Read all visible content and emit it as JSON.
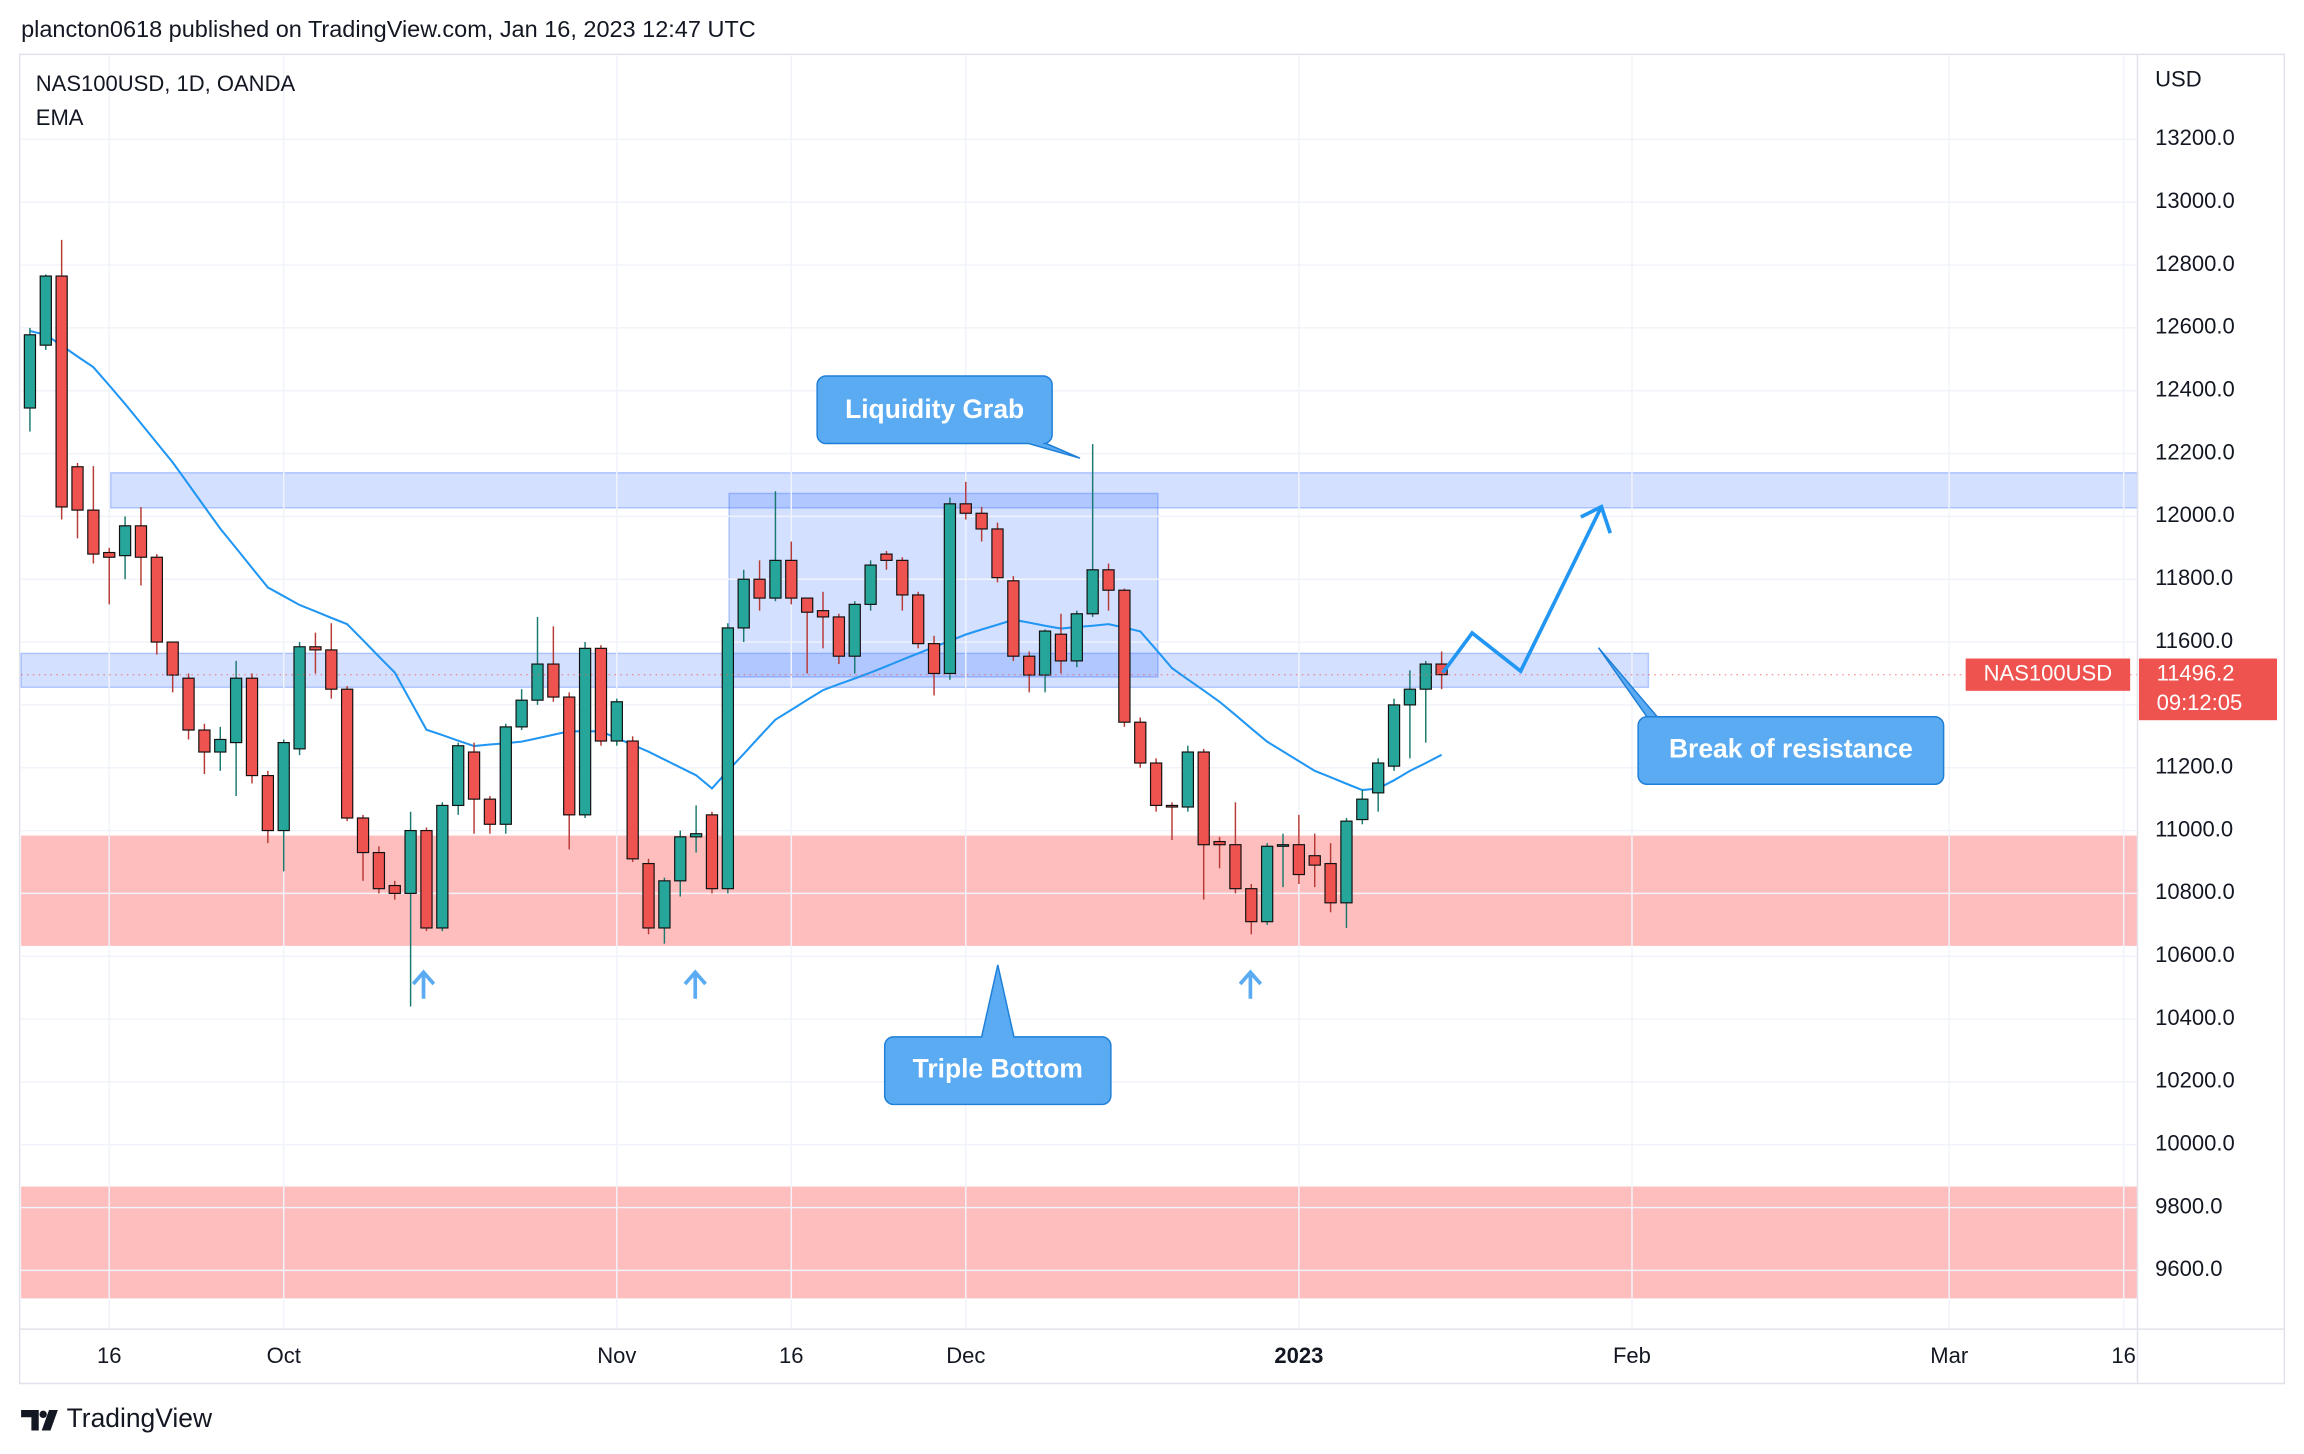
{
  "header": "plancton0618 published on TradingView.com, Jan 16, 2023 12:47 UTC",
  "footer": "TradingView",
  "chart_data": {
    "type": "candlestick",
    "title": "NAS100USD, 1D, OANDA",
    "y_axis_label": "USD",
    "x": [
      "2022-09-09",
      "2022-09-12",
      "2022-09-13",
      "2022-09-14",
      "2022-09-15",
      "2022-09-16",
      "2022-09-19",
      "2022-09-20",
      "2022-09-21",
      "2022-09-22",
      "2022-09-23",
      "2022-09-26",
      "2022-09-27",
      "2022-09-28",
      "2022-09-29",
      "2022-09-30",
      "2022-10-03",
      "2022-10-04",
      "2022-10-05",
      "2022-10-06",
      "2022-10-07",
      "2022-10-10",
      "2022-10-11",
      "2022-10-12",
      "2022-10-13",
      "2022-10-14",
      "2022-10-17",
      "2022-10-18",
      "2022-10-19",
      "2022-10-20",
      "2022-10-21",
      "2022-10-24",
      "2022-10-25",
      "2022-10-26",
      "2022-10-27",
      "2022-10-28",
      "2022-10-31",
      "2022-11-01",
      "2022-11-02",
      "2022-11-03",
      "2022-11-04",
      "2022-11-07",
      "2022-11-08",
      "2022-11-09",
      "2022-11-10",
      "2022-11-11",
      "2022-11-14",
      "2022-11-15",
      "2022-11-16",
      "2022-11-17",
      "2022-11-18",
      "2022-11-21",
      "2022-11-22",
      "2022-11-23",
      "2022-11-24",
      "2022-11-25",
      "2022-11-28",
      "2022-11-29",
      "2022-11-30",
      "2022-12-01",
      "2022-12-02",
      "2022-12-05",
      "2022-12-06",
      "2022-12-07",
      "2022-12-08",
      "2022-12-09",
      "2022-12-12",
      "2022-12-13",
      "2022-12-14",
      "2022-12-15",
      "2022-12-16",
      "2022-12-19",
      "2022-12-20",
      "2022-12-21",
      "2022-12-22",
      "2022-12-23",
      "2022-12-27",
      "2022-12-28",
      "2022-12-29",
      "2022-12-30",
      "2023-01-03",
      "2023-01-04",
      "2023-01-05",
      "2023-01-06",
      "2023-01-09",
      "2023-01-10",
      "2023-01-11",
      "2023-01-12",
      "2023-01-13",
      "2023-01-16"
    ],
    "open": [
      12345,
      12545,
      12765,
      12158,
      12020,
      11885,
      11875,
      11970,
      11870,
      11600,
      11485,
      11320,
      11250,
      11280,
      11485,
      11175,
      11000,
      11260,
      11585,
      11575,
      11450,
      11040,
      10930,
      10825,
      10800,
      11000,
      10690,
      11080,
      11250,
      11100,
      11020,
      11330,
      11415,
      11530,
      11425,
      11050,
      11580,
      11285,
      11285,
      10895,
      10690,
      10840,
      10980,
      11050,
      10815,
      11645,
      11800,
      11740,
      11860,
      11740,
      11700,
      11680,
      11555,
      11720,
      11880,
      11860,
      11750,
      11595,
      11500,
      12040,
      12010,
      11960,
      11795,
      11555,
      11495,
      11625,
      11540,
      11690,
      11830,
      11765,
      11345,
      11215,
      11080,
      11075,
      11250,
      10965,
      10955,
      10815,
      10710,
      10950,
      10955,
      10920,
      10895,
      10770,
      11035,
      11120,
      11205,
      11400,
      11450,
      11530
    ],
    "high": [
      12600,
      12770,
      12880,
      12170,
      12160,
      11900,
      12000,
      12030,
      11880,
      11600,
      11500,
      11340,
      11330,
      11540,
      11500,
      11190,
      11290,
      11600,
      11630,
      11660,
      11460,
      11050,
      10950,
      10840,
      11060,
      11010,
      11090,
      11280,
      11280,
      11110,
      11340,
      11450,
      11680,
      11650,
      11440,
      11600,
      11590,
      11420,
      11300,
      10910,
      10850,
      11000,
      11080,
      11060,
      11660,
      11830,
      11860,
      12080,
      11920,
      11740,
      11760,
      11690,
      11730,
      11860,
      11890,
      11870,
      11760,
      11620,
      12060,
      12110,
      12030,
      11980,
      11810,
      11570,
      11640,
      11690,
      11700,
      12230,
      11850,
      11770,
      11360,
      11230,
      11090,
      11270,
      11260,
      10980,
      11090,
      10830,
      10960,
      10990,
      11050,
      10990,
      10960,
      11040,
      11130,
      11230,
      11420,
      11510,
      11540,
      11570
    ],
    "low": [
      12270,
      12530,
      11990,
      11930,
      11850,
      11720,
      11800,
      11780,
      11560,
      11440,
      11290,
      11180,
      11190,
      11110,
      11150,
      10960,
      10870,
      11240,
      11500,
      11420,
      11030,
      10840,
      10800,
      10780,
      10440,
      10680,
      10680,
      11050,
      10990,
      10990,
      10990,
      11320,
      11400,
      11410,
      10940,
      11040,
      11270,
      11270,
      10900,
      10670,
      10640,
      10790,
      10930,
      10800,
      10800,
      11600,
      11700,
      11730,
      11720,
      11500,
      11580,
      11530,
      11500,
      11700,
      11830,
      11700,
      11580,
      11430,
      11480,
      11990,
      11920,
      11790,
      11540,
      11440,
      11440,
      11500,
      11520,
      11680,
      11700,
      11330,
      11200,
      11060,
      10970,
      11060,
      10780,
      10880,
      10800,
      10670,
      10700,
      10820,
      10830,
      10820,
      10740,
      10690,
      11020,
      11060,
      11190,
      11230,
      11280,
      11450
    ],
    "close": [
      12578,
      12765,
      12030,
      12020,
      11880,
      11870,
      11970,
      11870,
      11600,
      11495,
      11320,
      11250,
      11290,
      11485,
      11175,
      11000,
      11280,
      11585,
      11575,
      11450,
      11040,
      10930,
      10815,
      10800,
      11000,
      10690,
      11080,
      11270,
      11100,
      11020,
      11330,
      11415,
      11530,
      11425,
      11050,
      11580,
      11285,
      11410,
      10910,
      10690,
      10840,
      10980,
      10990,
      10815,
      11645,
      11800,
      11740,
      11860,
      11740,
      11695,
      11680,
      11555,
      11720,
      11845,
      11860,
      11750,
      11595,
      11500,
      12040,
      12010,
      11960,
      11805,
      11555,
      11495,
      11635,
      11540,
      11690,
      11830,
      11765,
      11345,
      11215,
      11080,
      11075,
      11250,
      10955,
      10955,
      10815,
      10710,
      10950,
      10955,
      10860,
      10890,
      10770,
      11030,
      11100,
      11215,
      11400,
      11450,
      11530,
      11496.2
    ],
    "up_color": "#26a69a",
    "down_color": "#ef5350",
    "indicator": {
      "name": "EMA",
      "color": "#2196f3",
      "values": [
        12590,
        12578,
        12544,
        12509,
        12475,
        12417,
        12358,
        12296,
        12234,
        12172,
        12102,
        12031,
        11961,
        11899,
        11836,
        11774,
        11746,
        11718,
        11698,
        11677,
        11657,
        11606,
        11554,
        11503,
        11412,
        11321,
        11304,
        11286,
        11269,
        11274,
        11278,
        11283,
        11294,
        11305,
        11316,
        11316,
        11316,
        11294,
        11273,
        11251,
        11226,
        11201,
        11176,
        11134,
        11190,
        11244,
        11299,
        11353,
        11384,
        11416,
        11447,
        11466,
        11484,
        11503,
        11523,
        11544,
        11564,
        11584,
        11604,
        11624,
        11640,
        11655,
        11671,
        11662,
        11652,
        11643,
        11648,
        11652,
        11657,
        11646,
        11634,
        11576,
        11517,
        11481,
        11446,
        11410,
        11368,
        11325,
        11283,
        11252,
        11221,
        11190,
        11170,
        11149,
        11129,
        11134,
        11160,
        11190,
        11215,
        11241
      ]
    },
    "ylim": [
      9413,
      13466
    ],
    "yticks": [
      {
        "value": 9600,
        "label": "9600.0"
      },
      {
        "value": 9800,
        "label": "9800.0"
      },
      {
        "value": 10000,
        "label": "10000.0"
      },
      {
        "value": 10200,
        "label": "10200.0"
      },
      {
        "value": 10400,
        "label": "10400.0"
      },
      {
        "value": 10600,
        "label": "10600.0"
      },
      {
        "value": 10800,
        "label": "10800.0"
      },
      {
        "value": 11000,
        "label": "11000.0"
      },
      {
        "value": 11200,
        "label": "11200.0"
      },
      {
        "value": 11400,
        "label": "11400.0"
      },
      {
        "value": 11600,
        "label": "11600.0"
      },
      {
        "value": 11800,
        "label": "11800.0"
      },
      {
        "value": 12000,
        "label": "12000.0"
      },
      {
        "value": 12200,
        "label": "12200.0"
      },
      {
        "value": 12400,
        "label": "12400.0"
      },
      {
        "value": 12600,
        "label": "12600.0"
      },
      {
        "value": 12800,
        "label": "12800.0"
      },
      {
        "value": 13000,
        "label": "13000.0"
      },
      {
        "value": 13200,
        "label": "13200.0"
      }
    ],
    "xticks": [
      {
        "value": "2022-09-16",
        "label": "16"
      },
      {
        "value": "2022-10-03",
        "label": "Oct"
      },
      {
        "value": "2022-11-01",
        "label": "Nov"
      },
      {
        "value": "2022-11-16",
        "label": "16"
      },
      {
        "value": "2022-12-01",
        "label": "Dec"
      },
      {
        "value": "2023-01-03",
        "label": "2023"
      },
      {
        "value": "2023-02-01",
        "label": "Feb"
      },
      {
        "value": "2023-03-01",
        "label": "Mar"
      },
      {
        "value": "2023-03-16",
        "label": "16"
      }
    ],
    "last_price": {
      "symbol": "NAS100USD",
      "countdown": "09:12:05"
    },
    "zones": [
      {
        "color": "blue",
        "range": [
          12027,
          12139
        ]
      },
      {
        "color": "blue",
        "range": [
          11456,
          11564
        ]
      },
      {
        "color": "blue",
        "range": [
          11489,
          12073
        ]
      },
      {
        "color": "red",
        "range": [
          10633,
          10984
        ]
      },
      {
        "color": "red",
        "range": [
          9511,
          9867
        ]
      }
    ],
    "annotations": [
      "Liquidity Grab",
      "Triple Bottom",
      "Break of resistance"
    ]
  }
}
